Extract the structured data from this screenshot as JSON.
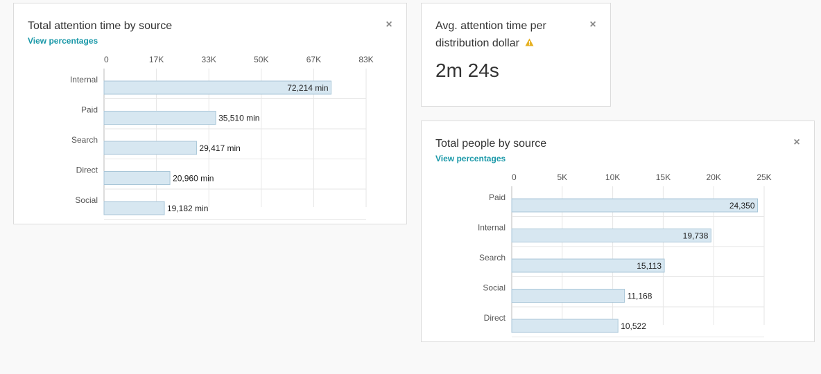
{
  "cards": {
    "attention": {
      "title": "Total attention time by source",
      "view_percentages": "View percentages",
      "close_icon": "close-icon"
    },
    "avg": {
      "title_line1": "Avg. attention time per",
      "title_line2": "distribution dollar",
      "value": "2m 24s",
      "warning_icon": "warning-icon",
      "warning_color": "#e6b020",
      "close_icon": "close-icon"
    },
    "people": {
      "title": "Total people by source",
      "view_percentages": "View percentages",
      "close_icon": "close-icon"
    }
  },
  "colors": {
    "bar_fill": "#d7e7f1",
    "bar_stroke": "#a8c6d8",
    "grid": "#e6e6e6",
    "link": "#1998a8"
  },
  "chart_data": [
    {
      "type": "bar",
      "orientation": "horizontal",
      "title": "Total attention time by source",
      "categories": [
        "Internal",
        "Paid",
        "Search",
        "Direct",
        "Social"
      ],
      "values": [
        72214,
        35510,
        29417,
        20960,
        19182
      ],
      "value_labels": [
        "72,214 min",
        "35,510 min",
        "29,417 min",
        "20,960 min",
        "19,182 min"
      ],
      "tick_labels": [
        "0",
        "17K",
        "33K",
        "50K",
        "67K",
        "83K"
      ],
      "tick_values": [
        0,
        16667,
        33333,
        50000,
        66667,
        83333
      ],
      "xlim": [
        0,
        83333
      ],
      "grid": true
    },
    {
      "type": "bar",
      "orientation": "horizontal",
      "title": "Total people by source",
      "categories": [
        "Paid",
        "Internal",
        "Search",
        "Social",
        "Direct"
      ],
      "values": [
        24350,
        19738,
        15113,
        11168,
        10522
      ],
      "value_labels": [
        "24,350",
        "19,738",
        "15,113",
        "11,168",
        "10,522"
      ],
      "tick_labels": [
        "0",
        "5K",
        "10K",
        "15K",
        "20K",
        "25K"
      ],
      "tick_values": [
        0,
        5000,
        10000,
        15000,
        20000,
        25000
      ],
      "xlim": [
        0,
        25000
      ],
      "grid": true
    }
  ]
}
